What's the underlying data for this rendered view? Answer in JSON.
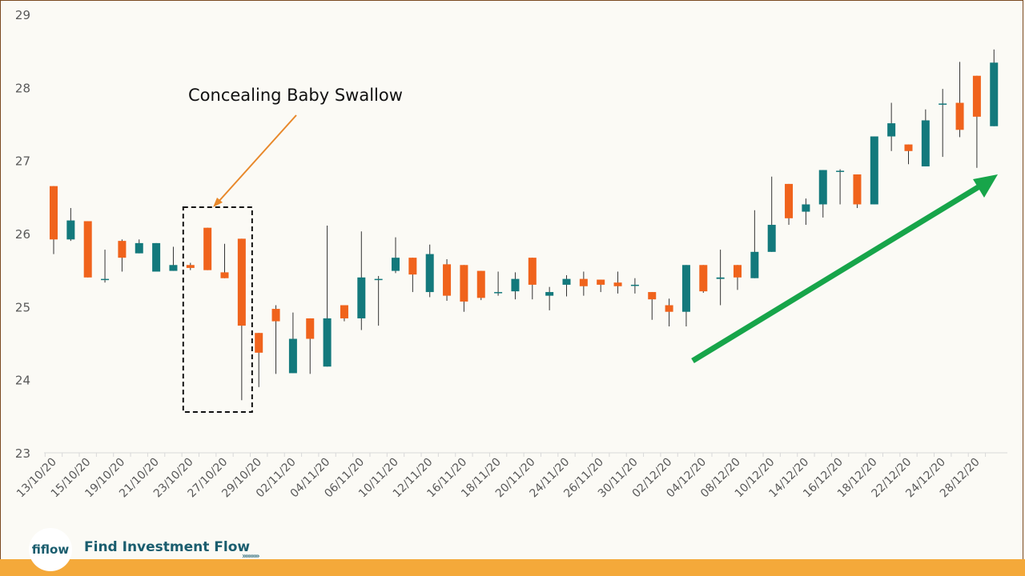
{
  "chart_data": {
    "type": "candlestick",
    "title": "",
    "xlabel": "",
    "ylabel": "",
    "ylim": [
      23,
      29
    ],
    "yticks": [
      23,
      24,
      25,
      26,
      27,
      28,
      29
    ],
    "grid": false,
    "colors": {
      "up": "#13797c",
      "down": "#f0631c",
      "wick": "#333333",
      "arrow_up": "#17a54a",
      "annotation_arrow": "#e8882a"
    },
    "x_tick_labels": [
      "13/10/20",
      "15/10/20",
      "19/10/20",
      "21/10/20",
      "23/10/20",
      "27/10/20",
      "29/10/20",
      "02/11/20",
      "04/11/20",
      "06/11/20",
      "10/11/20",
      "12/11/20",
      "16/11/20",
      "18/11/20",
      "20/11/20",
      "24/11/20",
      "26/11/20",
      "30/11/20",
      "02/12/20",
      "04/12/20",
      "08/12/20",
      "10/12/20",
      "14/12/20",
      "16/12/20",
      "18/12/20",
      "22/12/20",
      "24/12/20",
      "28/12/20"
    ],
    "candles": [
      {
        "o": 26.65,
        "h": 26.65,
        "l": 25.72,
        "c": 25.92
      },
      {
        "o": 25.92,
        "h": 26.35,
        "l": 25.9,
        "c": 26.18
      },
      {
        "o": 26.17,
        "h": 26.17,
        "l": 25.4,
        "c": 25.4
      },
      {
        "o": 25.38,
        "h": 25.78,
        "l": 25.33,
        "c": 25.38
      },
      {
        "o": 25.9,
        "h": 25.92,
        "l": 25.48,
        "c": 25.67
      },
      {
        "o": 25.73,
        "h": 25.92,
        "l": 25.73,
        "c": 25.87
      },
      {
        "o": 25.48,
        "h": 25.87,
        "l": 25.48,
        "c": 25.87
      },
      {
        "o": 25.49,
        "h": 25.82,
        "l": 25.49,
        "c": 25.57
      },
      {
        "o": 25.57,
        "h": 25.6,
        "l": 25.5,
        "c": 25.53
      },
      {
        "o": 26.08,
        "h": 26.08,
        "l": 25.5,
        "c": 25.5
      },
      {
        "o": 25.47,
        "h": 25.86,
        "l": 25.39,
        "c": 25.39
      },
      {
        "o": 25.93,
        "h": 25.93,
        "l": 23.72,
        "c": 24.74
      },
      {
        "o": 24.64,
        "h": 24.64,
        "l": 23.9,
        "c": 24.37
      },
      {
        "o": 24.97,
        "h": 25.02,
        "l": 24.08,
        "c": 24.8
      },
      {
        "o": 24.09,
        "h": 24.92,
        "l": 24.09,
        "c": 24.56
      },
      {
        "o": 24.84,
        "h": 24.84,
        "l": 24.08,
        "c": 24.56
      },
      {
        "o": 24.18,
        "h": 26.11,
        "l": 24.18,
        "c": 24.84
      },
      {
        "o": 25.02,
        "h": 25.02,
        "l": 24.8,
        "c": 24.84
      },
      {
        "o": 24.84,
        "h": 26.03,
        "l": 24.68,
        "c": 25.4
      },
      {
        "o": 25.38,
        "h": 25.42,
        "l": 24.74,
        "c": 25.38
      },
      {
        "o": 25.49,
        "h": 25.95,
        "l": 25.46,
        "c": 25.67
      },
      {
        "o": 25.67,
        "h": 25.67,
        "l": 25.2,
        "c": 25.44
      },
      {
        "o": 25.2,
        "h": 25.85,
        "l": 25.13,
        "c": 25.72
      },
      {
        "o": 25.58,
        "h": 25.65,
        "l": 25.08,
        "c": 25.15
      },
      {
        "o": 25.57,
        "h": 25.57,
        "l": 24.93,
        "c": 25.07
      },
      {
        "o": 25.49,
        "h": 25.49,
        "l": 25.09,
        "c": 25.12
      },
      {
        "o": 25.2,
        "h": 25.48,
        "l": 25.15,
        "c": 25.2
      },
      {
        "o": 25.21,
        "h": 25.47,
        "l": 25.1,
        "c": 25.38
      },
      {
        "o": 25.67,
        "h": 25.67,
        "l": 25.1,
        "c": 25.3
      },
      {
        "o": 25.15,
        "h": 25.27,
        "l": 24.95,
        "c": 25.2
      },
      {
        "o": 25.3,
        "h": 25.43,
        "l": 25.14,
        "c": 25.38
      },
      {
        "o": 25.38,
        "h": 25.48,
        "l": 25.15,
        "c": 25.28
      },
      {
        "o": 25.37,
        "h": 25.37,
        "l": 25.2,
        "c": 25.3
      },
      {
        "o": 25.33,
        "h": 25.48,
        "l": 25.18,
        "c": 25.28
      },
      {
        "o": 25.3,
        "h": 25.39,
        "l": 25.18,
        "c": 25.3
      },
      {
        "o": 25.2,
        "h": 25.2,
        "l": 24.82,
        "c": 25.1
      },
      {
        "o": 25.02,
        "h": 25.11,
        "l": 24.73,
        "c": 24.93
      },
      {
        "o": 24.93,
        "h": 25.57,
        "l": 24.73,
        "c": 25.57
      },
      {
        "o": 25.57,
        "h": 25.57,
        "l": 25.19,
        "c": 25.21
      },
      {
        "o": 25.38,
        "h": 25.78,
        "l": 25.02,
        "c": 25.4
      },
      {
        "o": 25.57,
        "h": 25.57,
        "l": 25.23,
        "c": 25.4
      },
      {
        "o": 25.39,
        "h": 26.32,
        "l": 25.39,
        "c": 25.75
      },
      {
        "o": 25.75,
        "h": 26.78,
        "l": 25.75,
        "c": 26.12
      },
      {
        "o": 26.68,
        "h": 26.68,
        "l": 26.12,
        "c": 26.21
      },
      {
        "o": 26.3,
        "h": 26.48,
        "l": 26.12,
        "c": 26.4
      },
      {
        "o": 26.4,
        "h": 26.87,
        "l": 26.22,
        "c": 26.87
      },
      {
        "o": 26.86,
        "h": 26.88,
        "l": 26.4,
        "c": 26.86
      },
      {
        "o": 26.81,
        "h": 26.81,
        "l": 26.35,
        "c": 26.4
      },
      {
        "o": 26.4,
        "h": 27.33,
        "l": 26.4,
        "c": 27.33
      },
      {
        "o": 27.33,
        "h": 27.79,
        "l": 27.13,
        "c": 27.51
      },
      {
        "o": 27.22,
        "h": 27.22,
        "l": 26.95,
        "c": 27.13
      },
      {
        "o": 26.92,
        "h": 27.7,
        "l": 26.92,
        "c": 27.55
      },
      {
        "o": 27.78,
        "h": 27.98,
        "l": 27.05,
        "c": 27.78
      },
      {
        "o": 27.79,
        "h": 28.35,
        "l": 27.32,
        "c": 27.42
      },
      {
        "o": 28.16,
        "h": 28.16,
        "l": 26.9,
        "c": 27.6
      },
      {
        "o": 27.47,
        "h": 28.52,
        "l": 27.47,
        "c": 28.34
      }
    ],
    "annotation": "Concealing Baby Swallow"
  },
  "brand": {
    "logo": "fiflow",
    "name": "Find Investment Flow",
    "arrows": "»»»»»"
  }
}
